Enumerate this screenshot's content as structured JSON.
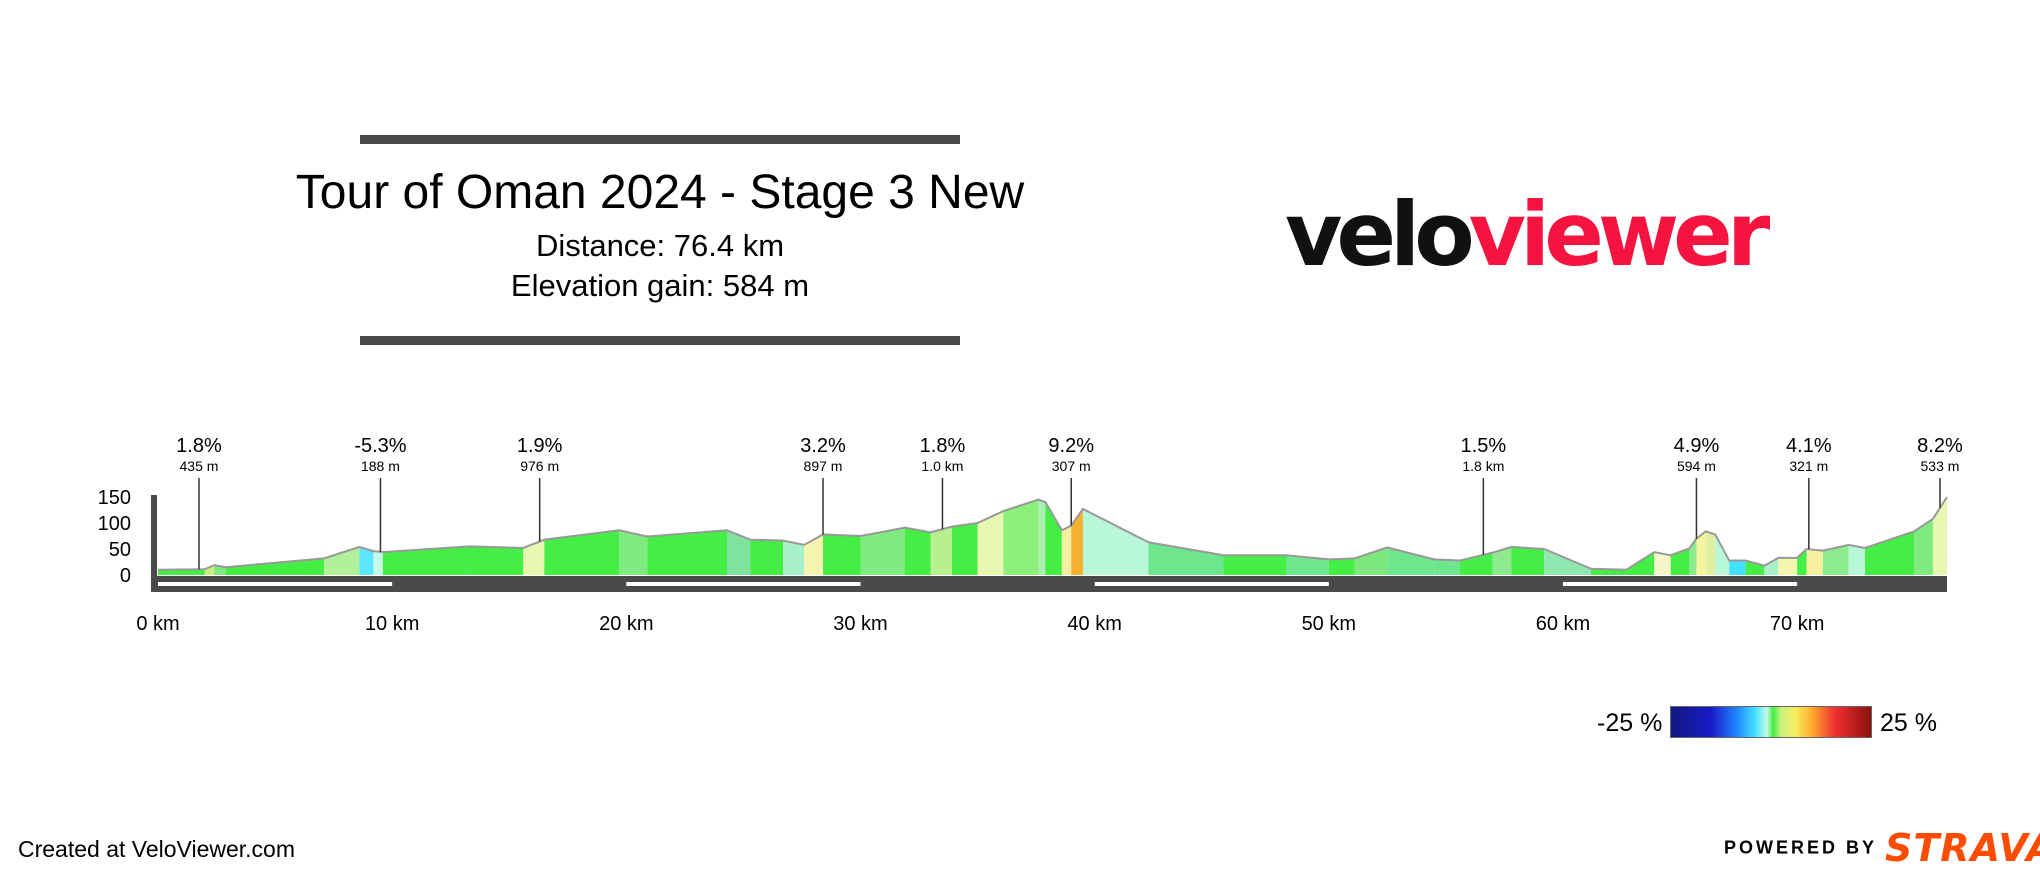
{
  "header": {
    "title": "Tour of Oman 2024 - Stage 3 New",
    "distance": "Distance: 76.4 km",
    "elevation": "Elevation gain: 584 m"
  },
  "logo": {
    "part1": "velo",
    "part2": "viewer",
    "colors": {
      "part1": "#111111",
      "part2": "#f5133f"
    }
  },
  "footer": {
    "created": "Created at VeloViewer.com",
    "powered_by": "POWERED BY",
    "strava": "STRAVA"
  },
  "legend": {
    "min": "-25 %",
    "max": "25 %"
  },
  "chart_data": {
    "type": "area",
    "xunit": "km",
    "xlim": [
      0,
      76.4
    ],
    "ylim": [
      0,
      150
    ],
    "y_ticks": [
      "150",
      "100",
      "50",
      "0"
    ],
    "x_ticks": [
      "0 km",
      "10 km",
      "20 km",
      "30 km",
      "40 km",
      "50 km",
      "60 km",
      "70 km"
    ],
    "profile": [
      {
        "km": 0,
        "m": 10
      },
      {
        "km": 2.0,
        "m": 11
      },
      {
        "km": 2.4,
        "m": 19
      },
      {
        "km": 2.9,
        "m": 15
      },
      {
        "km": 7.1,
        "m": 32
      },
      {
        "km": 8.6,
        "m": 54
      },
      {
        "km": 9.2,
        "m": 46
      },
      {
        "km": 9.6,
        "m": 44
      },
      {
        "km": 13.3,
        "m": 55
      },
      {
        "km": 15.6,
        "m": 52
      },
      {
        "km": 16.5,
        "m": 68
      },
      {
        "km": 19.7,
        "m": 86
      },
      {
        "km": 20.9,
        "m": 74
      },
      {
        "km": 24.3,
        "m": 86
      },
      {
        "km": 25.3,
        "m": 68
      },
      {
        "km": 26.7,
        "m": 66
      },
      {
        "km": 27.6,
        "m": 58
      },
      {
        "km": 28.4,
        "m": 78
      },
      {
        "km": 30.0,
        "m": 75
      },
      {
        "km": 31.9,
        "m": 91
      },
      {
        "km": 33.0,
        "m": 82
      },
      {
        "km": 33.9,
        "m": 93
      },
      {
        "km": 35.0,
        "m": 100
      },
      {
        "km": 36.1,
        "m": 123
      },
      {
        "km": 37.6,
        "m": 145
      },
      {
        "km": 37.9,
        "m": 140
      },
      {
        "km": 38.6,
        "m": 86
      },
      {
        "km": 39.0,
        "m": 95
      },
      {
        "km": 39.5,
        "m": 127
      },
      {
        "km": 42.3,
        "m": 63
      },
      {
        "km": 45.5,
        "m": 38
      },
      {
        "km": 48.2,
        "m": 38
      },
      {
        "km": 50.0,
        "m": 30
      },
      {
        "km": 51.1,
        "m": 32
      },
      {
        "km": 52.5,
        "m": 53
      },
      {
        "km": 54.5,
        "m": 30
      },
      {
        "km": 55.6,
        "m": 28
      },
      {
        "km": 57.0,
        "m": 43
      },
      {
        "km": 57.8,
        "m": 54
      },
      {
        "km": 59.2,
        "m": 50
      },
      {
        "km": 61.2,
        "m": 12
      },
      {
        "km": 62.7,
        "m": 10
      },
      {
        "km": 63.9,
        "m": 44
      },
      {
        "km": 64.6,
        "m": 38
      },
      {
        "km": 65.4,
        "m": 51
      },
      {
        "km": 65.7,
        "m": 70
      },
      {
        "km": 66.1,
        "m": 84
      },
      {
        "km": 66.5,
        "m": 78
      },
      {
        "km": 67.1,
        "m": 28
      },
      {
        "km": 67.8,
        "m": 28
      },
      {
        "km": 68.6,
        "m": 18
      },
      {
        "km": 69.2,
        "m": 33
      },
      {
        "km": 70.0,
        "m": 33
      },
      {
        "km": 70.4,
        "m": 50
      },
      {
        "km": 71.1,
        "m": 47
      },
      {
        "km": 72.2,
        "m": 58
      },
      {
        "km": 72.9,
        "m": 52
      },
      {
        "km": 75.0,
        "m": 84
      },
      {
        "km": 75.8,
        "m": 108
      },
      {
        "km": 76.4,
        "m": 150
      }
    ],
    "segment_colors": [
      "#44ee44",
      "#c8f080",
      "#7ee87e",
      "#44ee44",
      "#b2f09a",
      "#5de6ff",
      "#c4fbe8",
      "#44ee44",
      "#44ee44",
      "#e8f8b0",
      "#44ee44",
      "#7fea7f",
      "#44ee44",
      "#7fe3a0",
      "#44ee44",
      "#a8f0c8",
      "#f5f5b0",
      "#44ee44",
      "#7fea7f",
      "#44ee44",
      "#b8f090",
      "#44ee44",
      "#e8f8b0",
      "#8bef7a",
      "#a8f0b0",
      "#44ee44",
      "#f5f0a0",
      "#f5b030",
      "#b8f8d8",
      "#6ee68e",
      "#44ee44",
      "#6ee68e",
      "#44ee44",
      "#7ee87e",
      "#6ee68e",
      "#6ee68e",
      "#44ee44",
      "#8eea8e",
      "#44ee44",
      "#8ee8b0",
      "#44ee44",
      "#44ee44",
      "#f5f5c8",
      "#44ee44",
      "#8eea8e",
      "#f5f5a0",
      "#e0f0a0",
      "#b8f8d8",
      "#43e0ff",
      "#44ee44",
      "#a8f0c8",
      "#f5f5b0",
      "#44ee44",
      "#f5f0a0",
      "#8eea8e",
      "#b8f8d8",
      "#44ee44",
      "#7fea7f",
      "#e8f8b0",
      "#f0e050"
    ],
    "climbs": [
      {
        "km": 1.75,
        "grade": "1.8%",
        "length": "435 m"
      },
      {
        "km": 9.5,
        "grade": "-5.3%",
        "length": "188 m"
      },
      {
        "km": 16.3,
        "grade": "1.9%",
        "length": "976 m"
      },
      {
        "km": 28.4,
        "grade": "3.2%",
        "length": "897 m"
      },
      {
        "km": 33.5,
        "grade": "1.8%",
        "length": "1.0 km"
      },
      {
        "km": 39.0,
        "grade": "9.2%",
        "length": "307 m"
      },
      {
        "km": 56.6,
        "grade": "1.5%",
        "length": "1.8 km"
      },
      {
        "km": 65.7,
        "grade": "4.9%",
        "length": "594 m"
      },
      {
        "km": 70.5,
        "grade": "4.1%",
        "length": "321 m"
      },
      {
        "km": 76.1,
        "grade": "8.2%",
        "length": "533 m"
      }
    ]
  }
}
